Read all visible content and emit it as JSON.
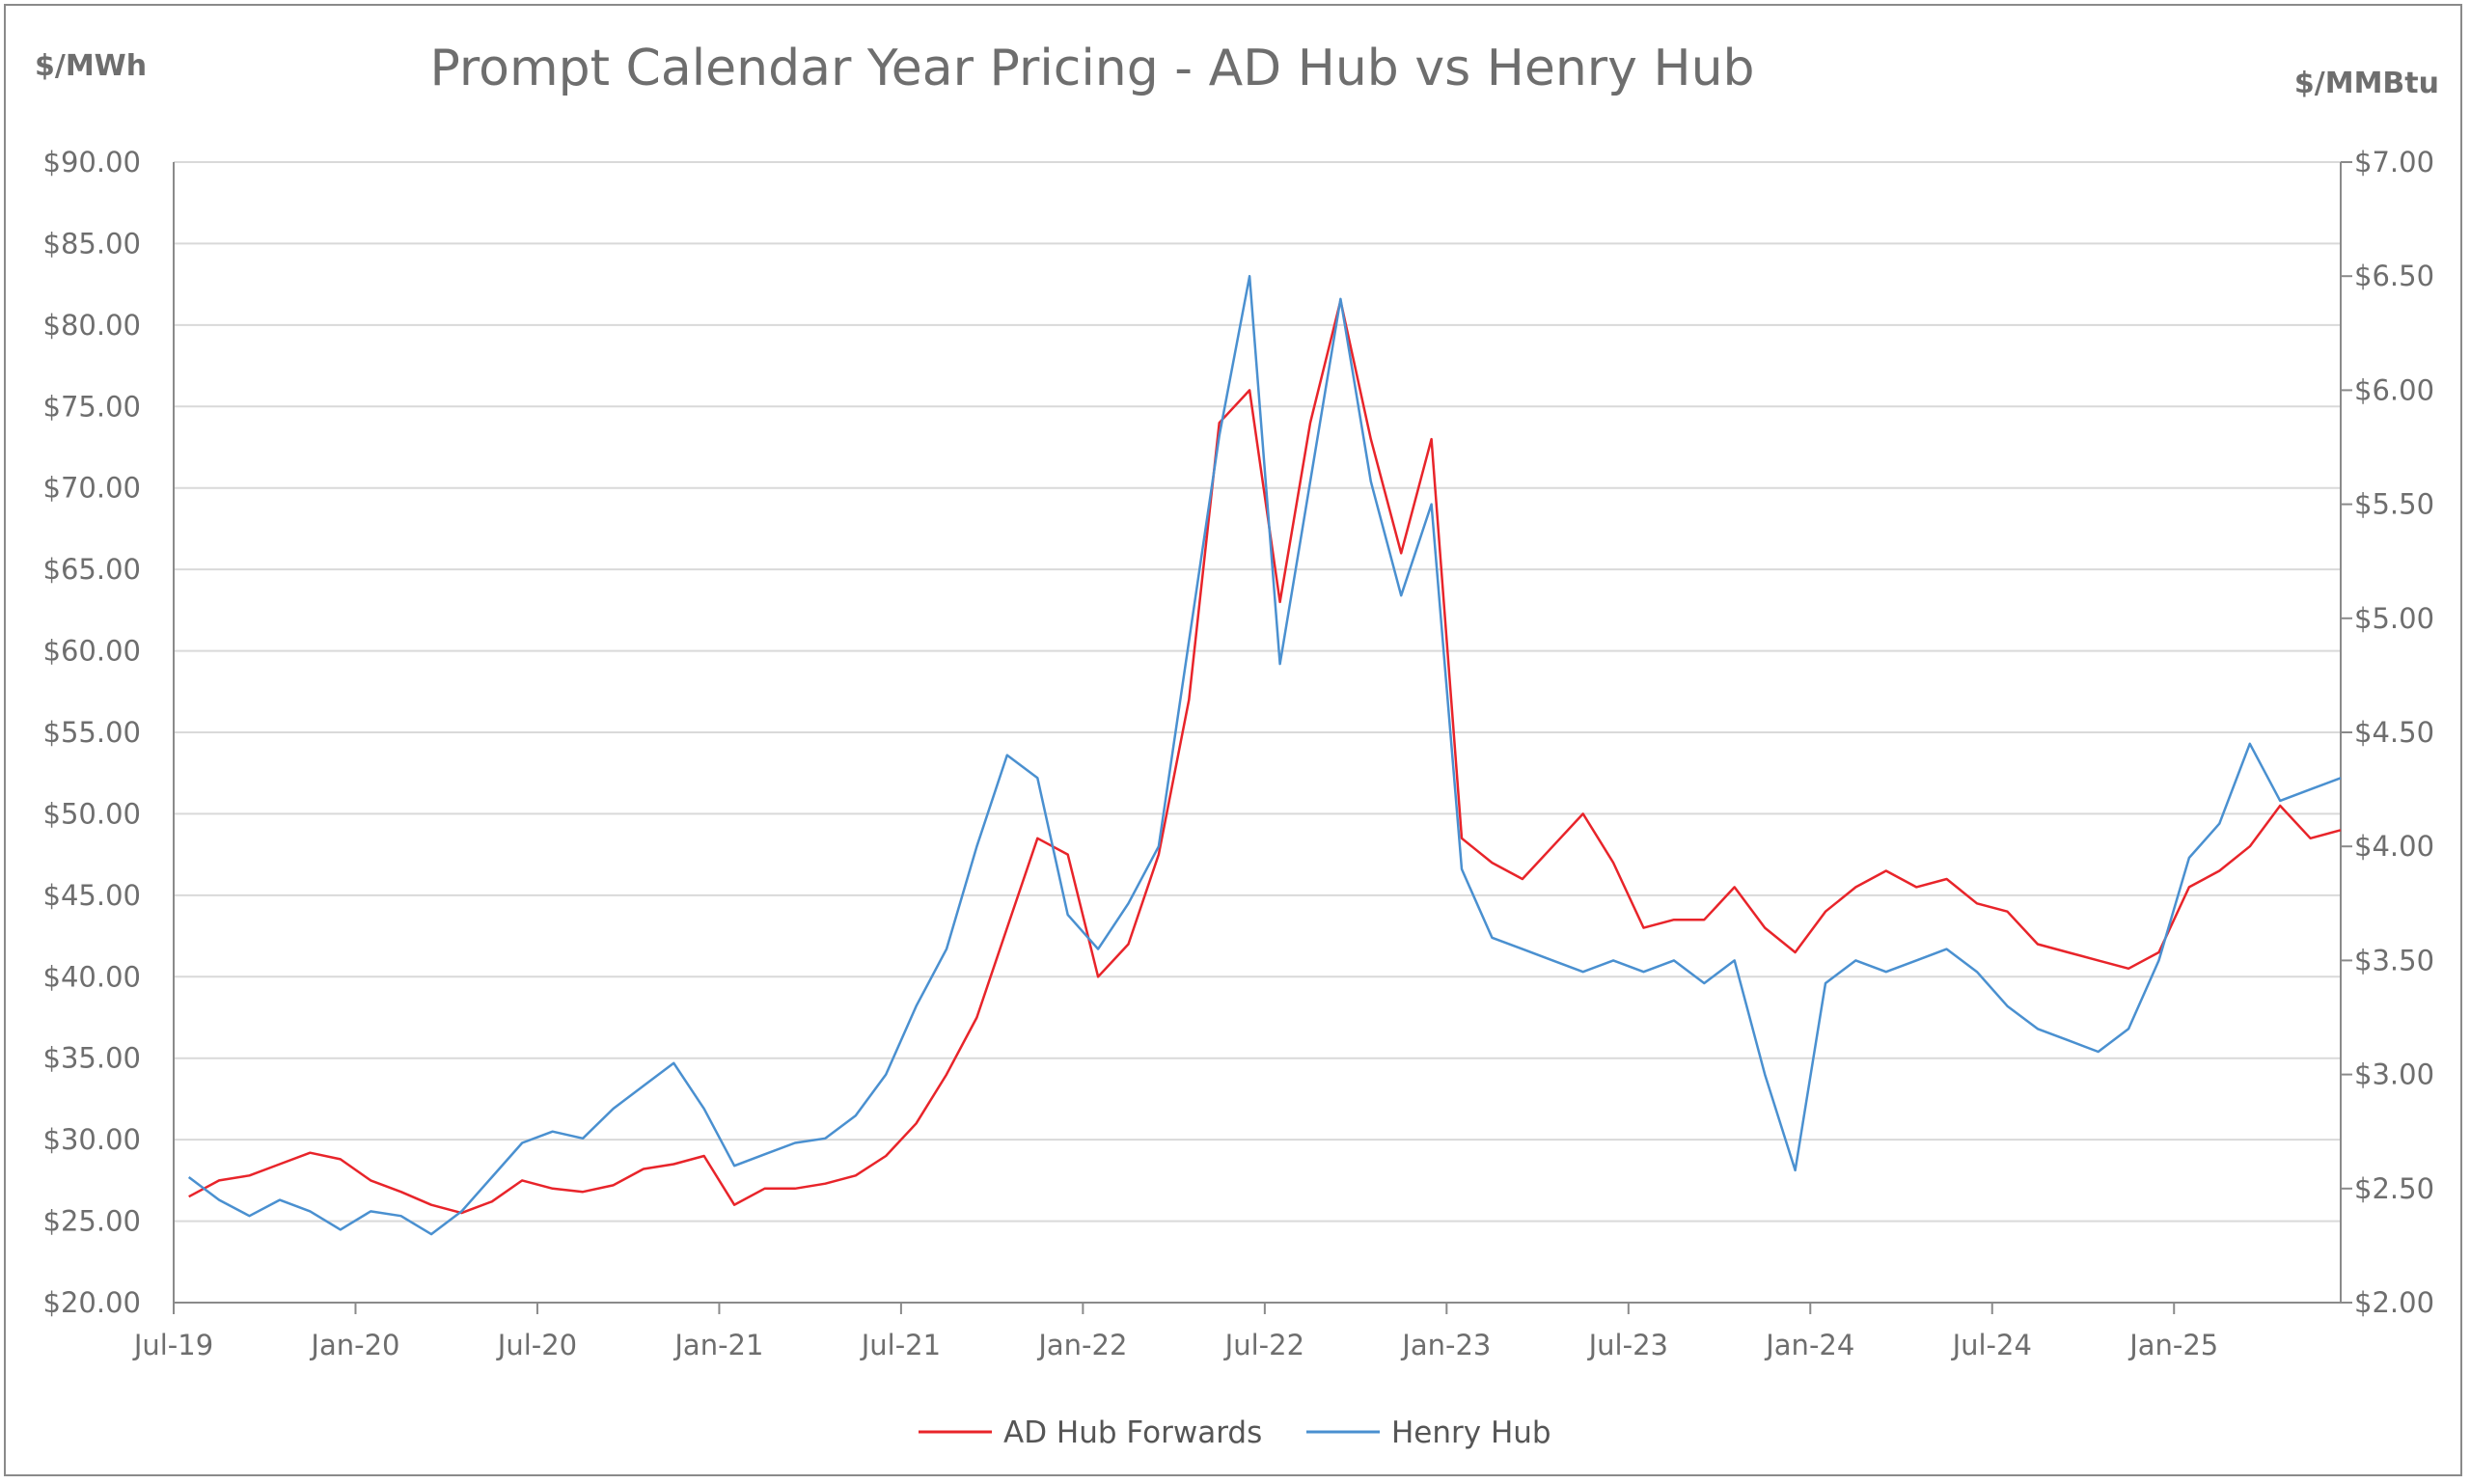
{
  "chart_data": {
    "type": "line",
    "title": "Prompt Calendar Year Pricing - AD Hub vs Henry Hub",
    "ylabel_left": "$/MWh",
    "ylabel_right": "$/MMBtu",
    "ylim_left": [
      20,
      90
    ],
    "ylim_right": [
      2,
      7
    ],
    "yticks_left": [
      "$20.00",
      "$25.00",
      "$30.00",
      "$35.00",
      "$40.00",
      "$45.00",
      "$50.00",
      "$55.00",
      "$60.00",
      "$65.00",
      "$70.00",
      "$75.00",
      "$80.00",
      "$85.00",
      "$90.00"
    ],
    "yticks_right": [
      "$2.00",
      "$2.50",
      "$3.00",
      "$3.50",
      "$4.00",
      "$4.50",
      "$5.00",
      "$5.50",
      "$6.00",
      "$6.50",
      "$7.00"
    ],
    "xticks": [
      "Jul-19",
      "Jan-20",
      "Jul-20",
      "Jan-21",
      "Jul-21",
      "Jan-22",
      "Jul-22",
      "Jan-23",
      "Jul-23",
      "Jan-24",
      "Jul-24",
      "Jan-25"
    ],
    "x_start": "Jul-19",
    "grid": true,
    "legend_position": "bottom",
    "series": [
      {
        "name": "AD Hub Forwards",
        "axis": "left",
        "color": "#e8242a",
        "points": [
          [
            "2019-07",
            26.5
          ],
          [
            "2019-08",
            27.5
          ],
          [
            "2019-09",
            27.8
          ],
          [
            "2019-10",
            28.5
          ],
          [
            "2019-11",
            29.2
          ],
          [
            "2019-12",
            28.8
          ],
          [
            "2020-01",
            27.5
          ],
          [
            "2020-02",
            26.8
          ],
          [
            "2020-03",
            26.0
          ],
          [
            "2020-04",
            25.5
          ],
          [
            "2020-05",
            26.2
          ],
          [
            "2020-06",
            27.5
          ],
          [
            "2020-07",
            27.0
          ],
          [
            "2020-08",
            26.8
          ],
          [
            "2020-09",
            27.2
          ],
          [
            "2020-10",
            28.2
          ],
          [
            "2020-11",
            28.5
          ],
          [
            "2020-12",
            29.0
          ],
          [
            "2021-01",
            26.0
          ],
          [
            "2021-02",
            27.0
          ],
          [
            "2021-03",
            27.0
          ],
          [
            "2021-04",
            27.3
          ],
          [
            "2021-05",
            27.8
          ],
          [
            "2021-06",
            29.0
          ],
          [
            "2021-07",
            31.0
          ],
          [
            "2021-08",
            34.0
          ],
          [
            "2021-09",
            37.5
          ],
          [
            "2021-10",
            43.0
          ],
          [
            "2021-11",
            48.5
          ],
          [
            "2021-12",
            47.5
          ],
          [
            "2022-01",
            40.0
          ],
          [
            "2022-02",
            42.0
          ],
          [
            "2022-03",
            47.5
          ],
          [
            "2022-04",
            57.0
          ],
          [
            "2022-05",
            74.0
          ],
          [
            "2022-06",
            76.0
          ],
          [
            "2022-07",
            63.0
          ],
          [
            "2022-08",
            74.0
          ],
          [
            "2022-09",
            81.5
          ],
          [
            "2022-10",
            73.0
          ],
          [
            "2022-11",
            66.0
          ],
          [
            "2022-12",
            73.0
          ],
          [
            "2023-01",
            48.5
          ],
          [
            "2023-02",
            47.0
          ],
          [
            "2023-03",
            46.0
          ],
          [
            "2023-04",
            48.0
          ],
          [
            "2023-05",
            50.0
          ],
          [
            "2023-06",
            47.0
          ],
          [
            "2023-07",
            43.0
          ],
          [
            "2023-08",
            43.5
          ],
          [
            "2023-09",
            43.5
          ],
          [
            "2023-10",
            45.5
          ],
          [
            "2023-11",
            43.0
          ],
          [
            "2023-12",
            41.5
          ],
          [
            "2024-01",
            44.0
          ],
          [
            "2024-02",
            45.5
          ],
          [
            "2024-03",
            46.5
          ],
          [
            "2024-04",
            45.5
          ],
          [
            "2024-05",
            46.0
          ],
          [
            "2024-06",
            44.5
          ],
          [
            "2024-07",
            44.0
          ],
          [
            "2024-08",
            42.0
          ],
          [
            "2024-09",
            41.5
          ],
          [
            "2024-10",
            41.0
          ],
          [
            "2024-11",
            40.5
          ],
          [
            "2024-12",
            41.5
          ],
          [
            "2025-01",
            45.5
          ],
          [
            "2025-02",
            46.5
          ],
          [
            "2025-03",
            48.0
          ],
          [
            "2025-04",
            50.5
          ],
          [
            "2025-05",
            48.5
          ],
          [
            "2025-06",
            49.0
          ]
        ]
      },
      {
        "name": "Henry Hub",
        "axis": "right",
        "color": "#4a90d0",
        "points": [
          [
            "2019-07",
            2.55
          ],
          [
            "2019-08",
            2.45
          ],
          [
            "2019-09",
            2.38
          ],
          [
            "2019-10",
            2.45
          ],
          [
            "2019-11",
            2.4
          ],
          [
            "2019-12",
            2.32
          ],
          [
            "2020-01",
            2.4
          ],
          [
            "2020-02",
            2.38
          ],
          [
            "2020-03",
            2.3
          ],
          [
            "2020-04",
            2.4
          ],
          [
            "2020-05",
            2.55
          ],
          [
            "2020-06",
            2.7
          ],
          [
            "2020-07",
            2.75
          ],
          [
            "2020-08",
            2.72
          ],
          [
            "2020-09",
            2.85
          ],
          [
            "2020-10",
            2.95
          ],
          [
            "2020-11",
            3.05
          ],
          [
            "2020-12",
            2.85
          ],
          [
            "2021-01",
            2.6
          ],
          [
            "2021-02",
            2.65
          ],
          [
            "2021-03",
            2.7
          ],
          [
            "2021-04",
            2.72
          ],
          [
            "2021-05",
            2.82
          ],
          [
            "2021-06",
            3.0
          ],
          [
            "2021-07",
            3.3
          ],
          [
            "2021-08",
            3.55
          ],
          [
            "2021-09",
            4.0
          ],
          [
            "2021-10",
            4.4
          ],
          [
            "2021-11",
            4.3
          ],
          [
            "2021-12",
            3.7
          ],
          [
            "2022-01",
            3.55
          ],
          [
            "2022-02",
            3.75
          ],
          [
            "2022-03",
            4.0
          ],
          [
            "2022-04",
            4.9
          ],
          [
            "2022-05",
            5.8
          ],
          [
            "2022-06",
            6.5
          ],
          [
            "2022-07",
            4.8
          ],
          [
            "2022-08",
            5.6
          ],
          [
            "2022-09",
            6.4
          ],
          [
            "2022-10",
            5.6
          ],
          [
            "2022-11",
            5.1
          ],
          [
            "2022-12",
            5.5
          ],
          [
            "2023-01",
            3.9
          ],
          [
            "2023-02",
            3.6
          ],
          [
            "2023-03",
            3.55
          ],
          [
            "2023-04",
            3.5
          ],
          [
            "2023-05",
            3.45
          ],
          [
            "2023-06",
            3.5
          ],
          [
            "2023-07",
            3.45
          ],
          [
            "2023-08",
            3.5
          ],
          [
            "2023-09",
            3.4
          ],
          [
            "2023-10",
            3.5
          ],
          [
            "2023-11",
            3.0
          ],
          [
            "2023-12",
            2.58
          ],
          [
            "2024-01",
            3.4
          ],
          [
            "2024-02",
            3.5
          ],
          [
            "2024-03",
            3.45
          ],
          [
            "2024-04",
            3.5
          ],
          [
            "2024-05",
            3.55
          ],
          [
            "2024-06",
            3.45
          ],
          [
            "2024-07",
            3.3
          ],
          [
            "2024-08",
            3.2
          ],
          [
            "2024-09",
            3.15
          ],
          [
            "2024-10",
            3.1
          ],
          [
            "2024-11",
            3.2
          ],
          [
            "2024-12",
            3.5
          ],
          [
            "2025-01",
            3.95
          ],
          [
            "2025-02",
            4.1
          ],
          [
            "2025-03",
            4.45
          ],
          [
            "2025-04",
            4.2
          ],
          [
            "2025-05",
            4.25
          ],
          [
            "2025-06",
            4.3
          ]
        ]
      }
    ]
  }
}
